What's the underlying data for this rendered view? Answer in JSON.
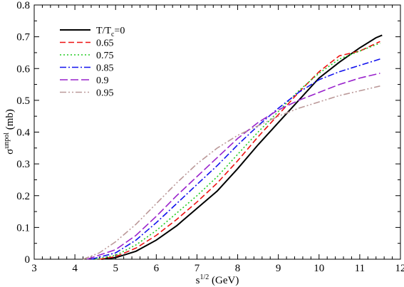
{
  "chart_data": {
    "type": "line",
    "xlabel": "s^1/2 (GeV)",
    "xlabel_parts": {
      "base": "s",
      "sup": "1/2",
      "rest": " (GeV)"
    },
    "ylabel": "σ^unpol (mb)",
    "ylabel_parts": {
      "base": "σ",
      "sup": "unpol",
      "rest": " (mb)"
    },
    "xlim": [
      3,
      12
    ],
    "ylim": [
      0,
      0.8
    ],
    "xticks": [
      3,
      4,
      5,
      6,
      7,
      8,
      9,
      10,
      11,
      12
    ],
    "yticks": [
      0,
      0.1,
      0.2,
      0.3,
      0.4,
      0.5,
      0.6,
      0.7,
      0.8
    ],
    "legend_position": "top-left",
    "legend_first_parts": {
      "base": "T/T",
      "sub": "c",
      "rest": "=0"
    },
    "series": [
      {
        "name": "T/Tc=0",
        "color": "#000000",
        "dash": "solid",
        "points": [
          [
            4.65,
            0
          ],
          [
            5.0,
            0.005
          ],
          [
            5.5,
            0.025
          ],
          [
            6.0,
            0.06
          ],
          [
            6.5,
            0.105
          ],
          [
            7.0,
            0.16
          ],
          [
            7.5,
            0.215
          ],
          [
            8.0,
            0.285
          ],
          [
            8.5,
            0.36
          ],
          [
            9.0,
            0.43
          ],
          [
            9.5,
            0.5
          ],
          [
            10.0,
            0.57
          ],
          [
            10.5,
            0.62
          ],
          [
            11.0,
            0.665
          ],
          [
            11.4,
            0.697
          ],
          [
            11.55,
            0.705
          ]
        ]
      },
      {
        "name": "0.65",
        "color": "#ee1111",
        "dash": "dashed",
        "points": [
          [
            4.6,
            0
          ],
          [
            5.0,
            0.008
          ],
          [
            5.5,
            0.035
          ],
          [
            6.0,
            0.075
          ],
          [
            6.5,
            0.125
          ],
          [
            7.0,
            0.18
          ],
          [
            7.5,
            0.24
          ],
          [
            8.0,
            0.31
          ],
          [
            8.5,
            0.385
          ],
          [
            9.0,
            0.455
          ],
          [
            9.5,
            0.525
          ],
          [
            10.0,
            0.59
          ],
          [
            10.5,
            0.64
          ],
          [
            11.0,
            0.655
          ],
          [
            11.5,
            0.685
          ]
        ]
      },
      {
        "name": "0.75",
        "color": "#22cc22",
        "dash": "dotted",
        "points": [
          [
            4.5,
            0
          ],
          [
            5.0,
            0.012
          ],
          [
            5.5,
            0.045
          ],
          [
            6.0,
            0.09
          ],
          [
            6.5,
            0.145
          ],
          [
            7.0,
            0.2
          ],
          [
            7.5,
            0.26
          ],
          [
            8.0,
            0.33
          ],
          [
            8.5,
            0.4
          ],
          [
            9.0,
            0.465
          ],
          [
            9.5,
            0.53
          ],
          [
            10.0,
            0.585
          ],
          [
            10.5,
            0.63
          ],
          [
            11.0,
            0.655
          ],
          [
            11.5,
            0.68
          ]
        ]
      },
      {
        "name": "0.85",
        "color": "#1111ee",
        "dash": "dashdot",
        "points": [
          [
            4.4,
            0
          ],
          [
            5.0,
            0.02
          ],
          [
            5.5,
            0.06
          ],
          [
            6.0,
            0.115
          ],
          [
            6.5,
            0.175
          ],
          [
            7.0,
            0.235
          ],
          [
            7.5,
            0.295
          ],
          [
            8.0,
            0.36
          ],
          [
            8.5,
            0.42
          ],
          [
            9.0,
            0.475
          ],
          [
            9.5,
            0.525
          ],
          [
            10.0,
            0.565
          ],
          [
            10.5,
            0.59
          ],
          [
            11.0,
            0.61
          ],
          [
            11.5,
            0.63
          ]
        ]
      },
      {
        "name": "0.9",
        "color": "#9922cc",
        "dash": "longdash",
        "points": [
          [
            4.3,
            0
          ],
          [
            5.0,
            0.03
          ],
          [
            5.5,
            0.075
          ],
          [
            6.0,
            0.135
          ],
          [
            6.5,
            0.2
          ],
          [
            7.0,
            0.26
          ],
          [
            7.5,
            0.32
          ],
          [
            8.0,
            0.38
          ],
          [
            8.5,
            0.43
          ],
          [
            9.0,
            0.47
          ],
          [
            9.5,
            0.5
          ],
          [
            10.0,
            0.525
          ],
          [
            10.5,
            0.55
          ],
          [
            11.0,
            0.57
          ],
          [
            11.5,
            0.585
          ]
        ]
      },
      {
        "name": "0.95",
        "color": "#bb9999",
        "dash": "dashdotdot",
        "points": [
          [
            4.2,
            0
          ],
          [
            4.6,
            0.02
          ],
          [
            5.0,
            0.055
          ],
          [
            5.5,
            0.11
          ],
          [
            6.0,
            0.175
          ],
          [
            6.5,
            0.24
          ],
          [
            7.0,
            0.3
          ],
          [
            7.5,
            0.35
          ],
          [
            8.0,
            0.39
          ],
          [
            8.5,
            0.42
          ],
          [
            9.0,
            0.45
          ],
          [
            9.5,
            0.475
          ],
          [
            10.0,
            0.495
          ],
          [
            10.5,
            0.515
          ],
          [
            11.0,
            0.53
          ],
          [
            11.5,
            0.545
          ]
        ]
      }
    ]
  }
}
